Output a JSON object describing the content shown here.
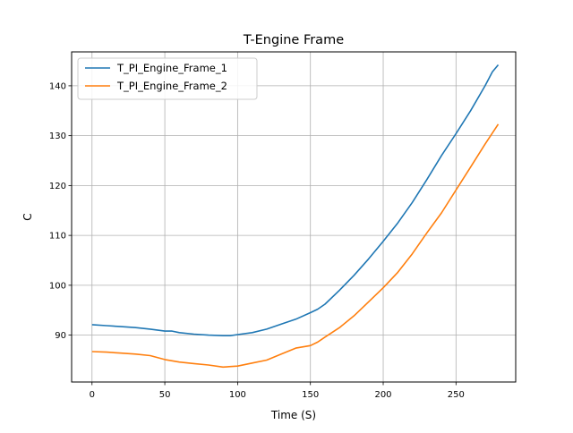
{
  "chart_data": {
    "type": "line",
    "title": "T-Engine Frame",
    "xlabel": "Time (S)",
    "ylabel": "C",
    "xlim": [
      -14,
      291
    ],
    "ylim": [
      80.6,
      146.8
    ],
    "xticks": [
      0,
      50,
      100,
      150,
      200,
      250
    ],
    "yticks": [
      90,
      100,
      110,
      120,
      130,
      140
    ],
    "grid": true,
    "legend_position": "top-left",
    "series": [
      {
        "name": "T_PI_Engine_Frame_1",
        "color": "#1f77b4",
        "x": [
          0,
          10,
          20,
          30,
          40,
          50,
          55,
          60,
          70,
          80,
          90,
          95,
          100,
          110,
          120,
          130,
          140,
          150,
          155,
          160,
          170,
          180,
          190,
          200,
          210,
          220,
          230,
          240,
          250,
          260,
          270,
          275,
          279
        ],
        "y": [
          92.1,
          91.9,
          91.7,
          91.5,
          91.2,
          90.8,
          90.8,
          90.5,
          90.2,
          90.0,
          89.9,
          89.9,
          90.1,
          90.5,
          91.2,
          92.2,
          93.2,
          94.5,
          95.2,
          96.2,
          99.0,
          102.0,
          105.3,
          108.8,
          112.5,
          116.6,
          121.2,
          126.0,
          130.4,
          135.0,
          140.0,
          142.8,
          144.2
        ]
      },
      {
        "name": "T_PI_Engine_Frame_2",
        "color": "#ff7f0e",
        "x": [
          0,
          10,
          20,
          30,
          40,
          50,
          60,
          70,
          80,
          90,
          100,
          110,
          120,
          130,
          140,
          150,
          155,
          160,
          170,
          180,
          190,
          200,
          210,
          220,
          230,
          240,
          250,
          260,
          270,
          279
        ],
        "y": [
          86.7,
          86.6,
          86.4,
          86.2,
          85.9,
          85.1,
          84.6,
          84.3,
          84.0,
          83.6,
          83.8,
          84.4,
          85.0,
          86.2,
          87.4,
          87.9,
          88.6,
          89.6,
          91.5,
          93.9,
          96.7,
          99.5,
          102.6,
          106.3,
          110.5,
          114.5,
          119.1,
          123.7,
          128.3,
          132.3
        ]
      }
    ]
  }
}
